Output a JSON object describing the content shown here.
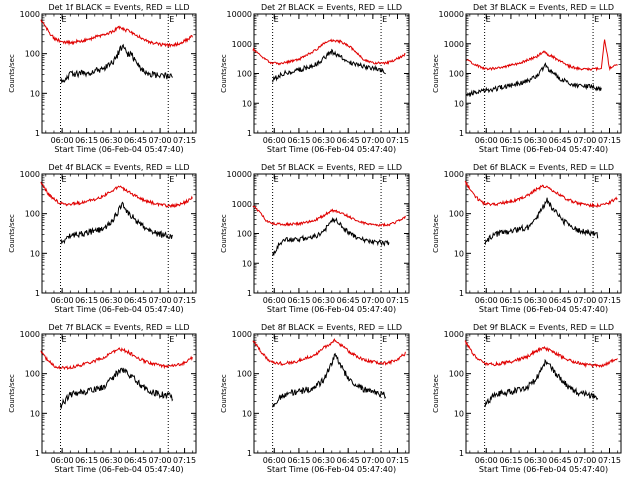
{
  "figure": {
    "background": "#ffffff",
    "axis_color": "#000000",
    "black_series_color": "#000000",
    "red_series_color": "#e00000"
  },
  "chart_data": [
    {
      "type": "line",
      "title": "Det 1f BLACK = Events, RED = LLD",
      "xlabel": "Start Time (06-Feb-04 05:47:40)",
      "ylabel": "Counts/sec",
      "yscale": "log",
      "xlim": [
        "05:47:40",
        "07:22"
      ],
      "ylim": [
        1,
        1000
      ],
      "yticks": [
        "1",
        "10",
        "100",
        "1000"
      ],
      "xticks": [
        "06:00",
        "06:15",
        "06:30",
        "06:45",
        "07:00",
        "07:15"
      ],
      "markers": [
        {
          "x": "05:59",
          "label": "E"
        },
        {
          "x": "07:05",
          "label": "E"
        }
      ],
      "series": [
        {
          "color": "black",
          "x": [
            "05:59",
            "06:05",
            "06:15",
            "06:25",
            "06:30",
            "06:33",
            "06:35",
            "06:37",
            "06:40",
            "06:43",
            "06:45",
            "06:50",
            "06:55",
            "07:00",
            "07:05",
            "07:08"
          ],
          "values": [
            20,
            30,
            33,
            40,
            55,
            75,
            120,
            160,
            100,
            90,
            60,
            35,
            30,
            28,
            27,
            25
          ]
        },
        {
          "color": "red",
          "x": [
            "05:47",
            "05:52",
            "05:55",
            "05:59",
            "06:05",
            "06:15",
            "06:25",
            "06:30",
            "06:35",
            "06:40",
            "06:45",
            "06:50",
            "06:55",
            "07:00",
            "07:05",
            "07:10",
            "07:15",
            "07:20"
          ],
          "values": [
            700,
            350,
            250,
            200,
            190,
            220,
            300,
            350,
            450,
            380,
            300,
            230,
            190,
            170,
            160,
            170,
            210,
            280
          ]
        }
      ]
    },
    {
      "type": "line",
      "title": "Det 2f BLACK = Events, RED = LLD",
      "xlabel": "Start Time (06-Feb-04 05:47:40)",
      "ylabel": "Counts/sec",
      "yscale": "log",
      "xlim": [
        "05:47:40",
        "07:22"
      ],
      "ylim": [
        1,
        10000
      ],
      "yticks": [
        "1",
        "10",
        "100",
        "1000",
        "10000"
      ],
      "xticks": [
        "06:00",
        "06:15",
        "06:30",
        "06:45",
        "07:00",
        "07:15"
      ],
      "markers": [
        {
          "x": "05:59",
          "label": "E"
        },
        {
          "x": "07:05",
          "label": "E"
        }
      ],
      "series": [
        {
          "color": "black",
          "x": [
            "05:59",
            "06:05",
            "06:15",
            "06:25",
            "06:30",
            "06:35",
            "06:37",
            "06:40",
            "06:45",
            "06:50",
            "06:55",
            "07:00",
            "07:05",
            "07:08"
          ],
          "values": [
            60,
            100,
            130,
            200,
            320,
            550,
            450,
            400,
            250,
            200,
            170,
            150,
            130,
            90
          ]
        },
        {
          "color": "red",
          "x": [
            "05:47",
            "05:52",
            "05:55",
            "05:59",
            "06:05",
            "06:15",
            "06:25",
            "06:30",
            "06:35",
            "06:40",
            "06:45",
            "06:50",
            "06:55",
            "07:00",
            "07:05",
            "07:10",
            "07:15",
            "07:20"
          ],
          "values": [
            650,
            400,
            280,
            220,
            220,
            300,
            600,
            1000,
            1300,
            1200,
            900,
            500,
            280,
            230,
            220,
            240,
            320,
            450
          ]
        }
      ]
    },
    {
      "type": "line",
      "title": "Det 3f BLACK = Events, RED = LLD",
      "xlabel": "Start Time (06-Feb-04 05:47:40)",
      "ylabel": "Counts/sec",
      "yscale": "log",
      "xlim": [
        "05:47:40",
        "07:22"
      ],
      "ylim": [
        1,
        10000
      ],
      "yticks": [
        "1",
        "10",
        "100",
        "1000",
        "10000"
      ],
      "xticks": [
        "06:00",
        "06:15",
        "06:30",
        "06:45",
        "07:00",
        "07:15"
      ],
      "markers": [
        {
          "x": "05:59",
          "label": "E"
        },
        {
          "x": "07:05",
          "label": "E"
        }
      ],
      "series": [
        {
          "color": "black",
          "x": [
            "05:48",
            "05:55",
            "06:05",
            "06:15",
            "06:25",
            "06:30",
            "06:33",
            "06:36",
            "06:38",
            "06:40",
            "06:45",
            "06:50",
            "06:55",
            "07:00",
            "07:05",
            "07:10"
          ],
          "values": [
            20,
            25,
            30,
            40,
            55,
            75,
            110,
            190,
            140,
            110,
            65,
            50,
            40,
            38,
            35,
            30
          ]
        },
        {
          "color": "red",
          "x": [
            "05:48",
            "05:55",
            "06:00",
            "06:10",
            "06:20",
            "06:25",
            "06:30",
            "06:35",
            "06:37",
            "06:40",
            "06:45",
            "06:50",
            "06:55",
            "07:00",
            "07:05",
            "07:10",
            "07:12",
            "07:15",
            "07:20"
          ],
          "values": [
            280,
            180,
            140,
            160,
            220,
            280,
            350,
            550,
            450,
            380,
            260,
            180,
            150,
            140,
            140,
            150,
            1400,
            150,
            200
          ]
        }
      ]
    },
    {
      "type": "line",
      "title": "Det 4f BLACK = Events, RED = LLD",
      "xlabel": "Start Time (06-Feb-04 05:47:40)",
      "ylabel": "Counts/sec",
      "yscale": "log",
      "xlim": [
        "05:47:40",
        "07:22"
      ],
      "ylim": [
        1,
        1000
      ],
      "yticks": [
        "1",
        "10",
        "100",
        "1000"
      ],
      "xticks": [
        "06:00",
        "06:15",
        "06:30",
        "06:45",
        "07:00",
        "07:15"
      ],
      "markers": [
        {
          "x": "05:59",
          "label": "E"
        },
        {
          "x": "07:05",
          "label": "E"
        }
      ],
      "series": [
        {
          "color": "black",
          "x": [
            "05:59",
            "06:05",
            "06:15",
            "06:25",
            "06:30",
            "06:34",
            "06:37",
            "06:40",
            "06:45",
            "06:50",
            "06:55",
            "07:00",
            "07:05",
            "07:08"
          ],
          "values": [
            18,
            28,
            33,
            40,
            60,
            110,
            170,
            110,
            70,
            45,
            35,
            30,
            28,
            25
          ]
        },
        {
          "color": "red",
          "x": [
            "05:47",
            "05:52",
            "05:55",
            "05:59",
            "06:05",
            "06:15",
            "06:25",
            "06:30",
            "06:35",
            "06:40",
            "06:45",
            "06:50",
            "06:55",
            "07:00",
            "07:05",
            "07:10",
            "07:15",
            "07:20"
          ],
          "values": [
            600,
            300,
            230,
            180,
            170,
            200,
            270,
            380,
            470,
            380,
            280,
            220,
            190,
            170,
            160,
            160,
            190,
            250
          ]
        }
      ]
    },
    {
      "type": "line",
      "title": "Det 5f BLACK = Events, RED = LLD",
      "xlabel": "Start Time (06-Feb-04 05:47:40)",
      "ylabel": "Counts/sec",
      "yscale": "log",
      "xlim": [
        "05:47:40",
        "07:22"
      ],
      "ylim": [
        1,
        10000
      ],
      "yticks": [
        "1",
        "10",
        "100",
        "1000",
        "10000"
      ],
      "xticks": [
        "06:00",
        "06:15",
        "06:30",
        "06:45",
        "07:00",
        "07:15"
      ],
      "markers": [
        {
          "x": "05:59",
          "label": "E"
        },
        {
          "x": "07:05",
          "label": "E"
        }
      ],
      "series": [
        {
          "color": "black",
          "x": [
            "05:59",
            "06:05",
            "06:15",
            "06:25",
            "06:30",
            "06:35",
            "06:37",
            "06:40",
            "06:45",
            "06:50",
            "06:55",
            "07:00",
            "07:05",
            "07:10"
          ],
          "values": [
            20,
            60,
            65,
            80,
            120,
            250,
            300,
            200,
            110,
            75,
            60,
            55,
            50,
            45
          ]
        },
        {
          "color": "red",
          "x": [
            "05:47",
            "05:52",
            "05:55",
            "05:59",
            "06:05",
            "06:15",
            "06:25",
            "06:30",
            "06:35",
            "06:40",
            "06:45",
            "06:50",
            "06:55",
            "07:00",
            "07:05",
            "07:10",
            "07:15",
            "07:20"
          ],
          "values": [
            900,
            450,
            280,
            220,
            200,
            210,
            280,
            400,
            600,
            520,
            380,
            270,
            220,
            200,
            190,
            200,
            250,
            380
          ]
        }
      ]
    },
    {
      "type": "line",
      "title": "Det 6f BLACK = Events, RED = LLD",
      "xlabel": "Start Time (06-Feb-04 05:47:40)",
      "ylabel": "Counts/sec",
      "yscale": "log",
      "xlim": [
        "05:47:40",
        "07:22"
      ],
      "ylim": [
        1,
        1000
      ],
      "yticks": [
        "1",
        "10",
        "100",
        "1000"
      ],
      "xticks": [
        "06:00",
        "06:15",
        "06:30",
        "06:45",
        "07:00",
        "07:15"
      ],
      "markers": [
        {
          "x": "05:59",
          "label": "E"
        },
        {
          "x": "07:05",
          "label": "E"
        }
      ],
      "series": [
        {
          "color": "black",
          "x": [
            "05:59",
            "06:05",
            "06:15",
            "06:25",
            "06:30",
            "06:34",
            "06:37",
            "06:40",
            "06:45",
            "06:50",
            "06:55",
            "07:00",
            "07:05",
            "07:08"
          ],
          "values": [
            18,
            30,
            35,
            45,
            70,
            140,
            230,
            140,
            80,
            50,
            40,
            35,
            30,
            28
          ]
        },
        {
          "color": "red",
          "x": [
            "05:47",
            "05:52",
            "05:55",
            "05:59",
            "06:05",
            "06:15",
            "06:25",
            "06:30",
            "06:35",
            "06:40",
            "06:45",
            "06:50",
            "06:55",
            "07:00",
            "07:05",
            "07:10",
            "07:15",
            "07:20"
          ],
          "values": [
            650,
            320,
            230,
            180,
            170,
            200,
            280,
            400,
            500,
            400,
            290,
            220,
            190,
            170,
            160,
            160,
            190,
            260
          ]
        }
      ]
    },
    {
      "type": "line",
      "title": "Det 7f BLACK = Events, RED = LLD",
      "xlabel": "Start Time (06-Feb-04 05:47:40)",
      "ylabel": "Counts/sec",
      "yscale": "log",
      "xlim": [
        "05:47:40",
        "07:22"
      ],
      "ylim": [
        1,
        1000
      ],
      "yticks": [
        "1",
        "10",
        "100",
        "1000"
      ],
      "xticks": [
        "06:00",
        "06:15",
        "06:30",
        "06:45",
        "07:00",
        "07:15"
      ],
      "markers": [
        {
          "x": "05:59",
          "label": "E"
        },
        {
          "x": "07:05",
          "label": "E"
        }
      ],
      "series": [
        {
          "color": "black",
          "x": [
            "05:59",
            "06:05",
            "06:15",
            "06:25",
            "06:30",
            "06:34",
            "06:37",
            "06:40",
            "06:45",
            "06:50",
            "06:55",
            "07:00",
            "07:05",
            "07:08"
          ],
          "values": [
            15,
            30,
            35,
            45,
            70,
            110,
            130,
            100,
            70,
            45,
            35,
            30,
            28,
            25
          ]
        },
        {
          "color": "red",
          "x": [
            "05:47",
            "05:52",
            "05:55",
            "05:59",
            "06:05",
            "06:15",
            "06:25",
            "06:30",
            "06:35",
            "06:40",
            "06:45",
            "06:50",
            "06:55",
            "07:00",
            "07:05",
            "07:10",
            "07:15",
            "07:20"
          ],
          "values": [
            350,
            200,
            160,
            140,
            140,
            180,
            250,
            330,
            420,
            360,
            270,
            210,
            180,
            160,
            150,
            160,
            190,
            260
          ]
        }
      ]
    },
    {
      "type": "line",
      "title": "Det 8f BLACK = Events, RED = LLD",
      "xlabel": "Start Time (06-Feb-04 05:47:40)",
      "ylabel": "Counts/sec",
      "yscale": "log",
      "xlim": [
        "05:47:40",
        "07:22"
      ],
      "ylim": [
        1,
        1000
      ],
      "yticks": [
        "1",
        "10",
        "100",
        "1000"
      ],
      "xticks": [
        "06:00",
        "06:15",
        "06:30",
        "06:45",
        "07:00",
        "07:15"
      ],
      "markers": [
        {
          "x": "05:59",
          "label": "E"
        },
        {
          "x": "07:05",
          "label": "E"
        }
      ],
      "series": [
        {
          "color": "black",
          "x": [
            "05:59",
            "06:05",
            "06:15",
            "06:25",
            "06:30",
            "06:34",
            "06:37",
            "06:40",
            "06:42",
            "06:45",
            "06:50",
            "06:55",
            "07:00",
            "07:05",
            "07:08"
          ],
          "values": [
            15,
            30,
            35,
            45,
            70,
            150,
            300,
            180,
            120,
            80,
            50,
            40,
            35,
            30,
            28
          ]
        },
        {
          "color": "red",
          "x": [
            "05:47",
            "05:52",
            "05:55",
            "05:59",
            "06:05",
            "06:15",
            "06:25",
            "06:30",
            "06:35",
            "06:37",
            "06:40",
            "06:45",
            "06:50",
            "06:55",
            "07:00",
            "07:05",
            "07:10",
            "07:15",
            "07:20"
          ],
          "values": [
            700,
            350,
            250,
            190,
            180,
            210,
            300,
            450,
            600,
            700,
            550,
            380,
            270,
            220,
            200,
            180,
            190,
            230,
            330
          ]
        }
      ]
    },
    {
      "type": "line",
      "title": "Det 9f BLACK = Events, RED = LLD",
      "xlabel": "Start Time (06-Feb-04 05:47:40)",
      "ylabel": "Counts/sec",
      "yscale": "log",
      "xlim": [
        "05:47:40",
        "07:22"
      ],
      "ylim": [
        1,
        1000
      ],
      "yticks": [
        "1",
        "10",
        "100",
        "1000"
      ],
      "xticks": [
        "06:00",
        "06:15",
        "06:30",
        "06:45",
        "07:00",
        "07:15"
      ],
      "markers": [
        {
          "x": "05:59",
          "label": "E"
        },
        {
          "x": "07:05",
          "label": "E"
        }
      ],
      "series": [
        {
          "color": "black",
          "x": [
            "05:59",
            "06:05",
            "06:15",
            "06:25",
            "06:30",
            "06:34",
            "06:37",
            "06:40",
            "06:45",
            "06:50",
            "06:55",
            "07:00",
            "07:05",
            "07:08"
          ],
          "values": [
            15,
            30,
            35,
            45,
            70,
            140,
            220,
            130,
            75,
            45,
            35,
            30,
            28,
            25
          ]
        },
        {
          "color": "red",
          "x": [
            "05:47",
            "05:52",
            "05:55",
            "05:59",
            "06:05",
            "06:15",
            "06:25",
            "06:30",
            "06:35",
            "06:40",
            "06:45",
            "06:50",
            "06:55",
            "07:00",
            "07:05",
            "07:10",
            "07:15",
            "07:20"
          ],
          "values": [
            650,
            320,
            230,
            180,
            170,
            200,
            270,
            370,
            450,
            380,
            280,
            220,
            190,
            170,
            160,
            160,
            190,
            250
          ]
        }
      ]
    }
  ]
}
